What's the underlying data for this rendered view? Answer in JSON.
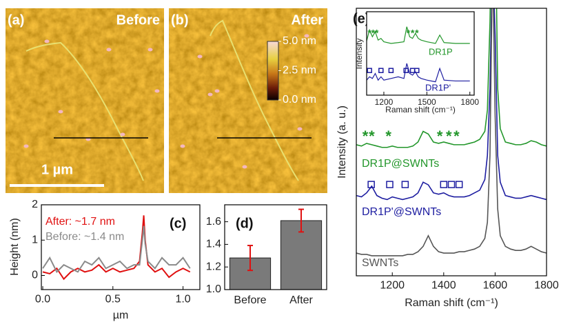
{
  "chart_data": [
    {
      "type": "image",
      "label": "(a)",
      "title": "Before",
      "scale_bar": "1 µm"
    },
    {
      "type": "image",
      "label": "(b)",
      "title": "After",
      "colorbar": {
        "lim": [
          0,
          5
        ],
        "ticks": [
          {
            "value": 5,
            "label": "5.0 nm"
          },
          {
            "value": 2.5,
            "label": "2.5 nm"
          },
          {
            "value": 0,
            "label": "0.0 nm"
          }
        ]
      }
    },
    {
      "type": "line",
      "label": "(c)",
      "ylabel": "Height (nm)",
      "xlabel": "µm",
      "x": [
        0,
        0.05,
        0.1,
        0.15,
        0.2,
        0.25,
        0.3,
        0.35,
        0.4,
        0.45,
        0.5,
        0.55,
        0.6,
        0.65,
        0.69,
        0.71,
        0.72,
        0.73,
        0.75,
        0.8,
        0.85,
        0.9,
        0.95,
        1.0,
        1.05
      ],
      "series": [
        {
          "name": "After: ~1.7 nm",
          "color": "#e01010",
          "values": [
            0.1,
            0.05,
            0.2,
            -0.1,
            0.1,
            0.2,
            0.1,
            0.15,
            0.3,
            0.1,
            0.2,
            0.1,
            0.15,
            0.2,
            0.4,
            1.2,
            1.7,
            1.0,
            0.3,
            0.1,
            0.2,
            -0.05,
            0.1,
            0.2,
            0.1
          ]
        },
        {
          "name": "Before: ~1.4 nm",
          "color": "#8a8a8a",
          "values": [
            0.2,
            0.5,
            0.1,
            0.3,
            0.2,
            0.1,
            0.4,
            0.3,
            0.5,
            0.2,
            0.3,
            0.4,
            0.2,
            0.3,
            0.3,
            1.0,
            1.4,
            0.9,
            0.4,
            0.2,
            0.5,
            0.3,
            0.3,
            0.5,
            0.2
          ]
        }
      ],
      "xlim": [
        -0.01,
        1.12
      ],
      "ylim": [
        -0.4,
        2
      ],
      "xticks": [
        {
          "value": 0,
          "label": "0.0"
        },
        {
          "value": 0.5,
          "label": "0.5"
        },
        {
          "value": 1,
          "label": "1.0"
        }
      ],
      "yticks": [
        0,
        1,
        2
      ]
    },
    {
      "type": "bar",
      "label": "(d)",
      "categories": [
        "Before",
        "After"
      ],
      "values": [
        1.28,
        1.61
      ],
      "errors": [
        0.11,
        0.1
      ],
      "color": "#7a7a7a",
      "error_color": "#e01010",
      "ylim": [
        1.0,
        1.75
      ],
      "yticks": [
        {
          "value": 1,
          "label": "1.0"
        },
        1.2,
        1.4,
        1.6
      ]
    },
    {
      "type": "line",
      "label": "(e)",
      "ylabel": "Intensity (a. u.)",
      "xlabel": "Raman shift (cm⁻¹)",
      "x": [
        1060,
        1080,
        1100,
        1120,
        1140,
        1160,
        1180,
        1200,
        1220,
        1240,
        1260,
        1280,
        1300,
        1320,
        1340,
        1360,
        1380,
        1400,
        1420,
        1440,
        1460,
        1480,
        1500,
        1520,
        1540,
        1560,
        1570,
        1580,
        1590,
        1600,
        1610,
        1620,
        1640,
        1660,
        1680,
        1700,
        1720,
        1740,
        1760,
        1780,
        1800
      ],
      "series": [
        {
          "name": "DR1P@SWNTs",
          "color": "#22962a",
          "values": [
            49,
            48.5,
            49.5,
            49,
            48.5,
            48,
            48,
            48.5,
            48,
            48,
            48,
            48.5,
            50,
            54,
            53,
            50,
            49.5,
            50,
            49.5,
            49,
            49,
            49,
            49.5,
            50,
            51,
            54,
            62,
            95,
            150,
            140,
            70,
            55,
            50,
            49.5,
            49,
            49,
            49.5,
            50.5,
            50,
            49,
            48.5
          ]
        },
        {
          "name": "DR1P'@SWNTs",
          "color": "#1c1ca0",
          "values": [
            30,
            29.5,
            31,
            33.5,
            30,
            29,
            28.5,
            29.5,
            29,
            28.5,
            29,
            29.5,
            31,
            35,
            34,
            31,
            30.5,
            31,
            30,
            29.5,
            29.5,
            29.5,
            30,
            31,
            32,
            36,
            45,
            70,
            120,
            90,
            45,
            35,
            30,
            29.5,
            29,
            29,
            29.5,
            30,
            29.5,
            29,
            28.5
          ]
        },
        {
          "name": "SWNTs",
          "color": "#555555",
          "values": [
            8.5,
            8,
            8,
            7.5,
            7.5,
            7.5,
            7.5,
            7.5,
            7.5,
            7.5,
            8,
            8,
            9,
            11,
            15,
            11,
            9,
            8.5,
            8.5,
            8.5,
            9,
            9,
            9.5,
            10,
            11,
            14,
            20,
            45,
            120,
            60,
            25,
            15,
            11,
            10,
            9.5,
            9.5,
            10,
            11,
            10,
            9,
            8.5
          ]
        }
      ],
      "annotations": [
        {
          "series": 0,
          "text": "*",
          "x": [
            1095,
            1120,
            1185,
            1385,
            1420,
            1450
          ]
        },
        {
          "series": 1,
          "shape": "square",
          "x": [
            1118,
            1190,
            1250,
            1400,
            1430,
            1460
          ]
        }
      ],
      "xlim": [
        1060,
        1800
      ],
      "ylim": [
        0,
        100
      ],
      "xticks": [
        1200,
        1400,
        1600,
        1800
      ],
      "inset": {
        "ylabel": "Intensity",
        "xlabel": "Raman shift (cm⁻¹)",
        "x": [
          1080,
          1100,
          1120,
          1140,
          1160,
          1180,
          1200,
          1250,
          1300,
          1340,
          1360,
          1380,
          1400,
          1420,
          1440,
          1460,
          1500,
          1560,
          1590,
          1620,
          1700,
          1800
        ],
        "series": [
          {
            "name": "DR1P",
            "color": "#22962a",
            "values": [
              65,
              78,
              70,
              76,
              66,
              68,
              64,
              62,
              63,
              64,
              82,
              70,
              68,
              74,
              68,
              66,
              64,
              62,
              72,
              63,
              62,
              62
            ]
          },
          {
            "name": "DR1P'",
            "color": "#1c1ca0",
            "values": [
              18,
              22,
              20,
              26,
              18,
              22,
              18,
              20,
              22,
              20,
              38,
              26,
              24,
              28,
              22,
              20,
              18,
              16,
              32,
              18,
              17,
              17
            ]
          }
        ],
        "annotations": [
          {
            "series": 0,
            "text": "*",
            "x": [
              1100,
              1125,
              1150,
              1370,
              1400,
              1430
            ]
          },
          {
            "series": 1,
            "shape": "square",
            "x": [
              1100,
              1180,
              1250,
              1355,
              1400,
              1430
            ]
          }
        ],
        "xlim": [
          1080,
          1830
        ],
        "ylim": [
          0,
          100
        ],
        "xticks": [
          1200,
          1500,
          1800
        ]
      }
    }
  ]
}
